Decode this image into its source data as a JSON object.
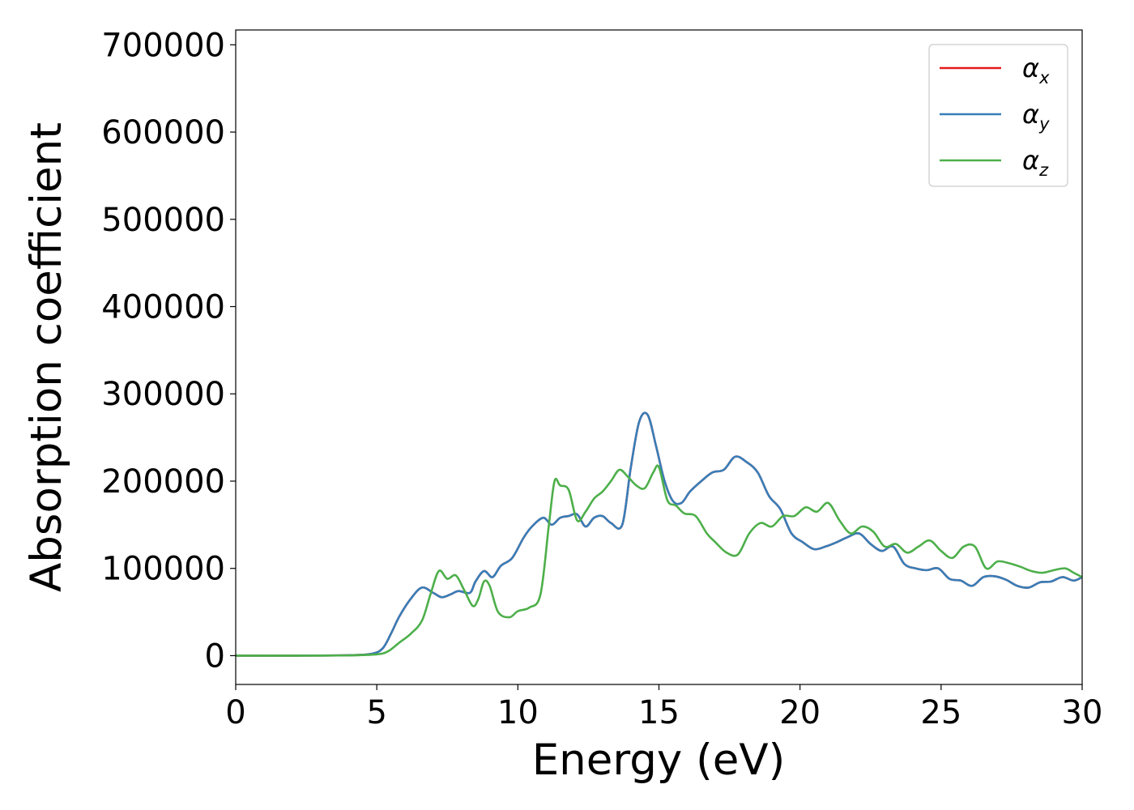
{
  "chart_data": {
    "type": "line",
    "title": "",
    "xlabel": "Energy (eV)",
    "ylabel": "Absorption coefficient",
    "xlim": [
      0,
      30
    ],
    "ylim": [
      -33000,
      717000
    ],
    "xticks": [
      0,
      5,
      10,
      15,
      20,
      25,
      30
    ],
    "xtick_labels": [
      "0",
      "5",
      "10",
      "15",
      "20",
      "25",
      "30"
    ],
    "yticks": [
      0,
      100000,
      200000,
      300000,
      400000,
      500000,
      600000,
      700000
    ],
    "ytick_labels": [
      "0",
      "100000",
      "200000",
      "300000",
      "400000",
      "500000",
      "600000",
      "700000"
    ],
    "grid": false,
    "legend_placement": "top-right",
    "series": [
      {
        "name": "α",
        "subscript": "x",
        "color": "#e41a1c",
        "x": [
          0,
          2,
          4,
          4.8,
          5.2,
          5.5,
          5.8,
          6.2,
          6.6,
          7.0,
          7.3,
          7.6,
          7.9,
          8.3,
          8.5,
          8.8,
          9.1,
          9.4,
          9.8,
          10.2,
          10.5,
          10.9,
          11.2,
          11.5,
          11.8,
          12.1,
          12.4,
          12.7,
          13.0,
          13.3,
          13.7,
          14.0,
          14.3,
          14.6,
          14.9,
          15.2,
          15.5,
          15.8,
          16.1,
          16.5,
          16.9,
          17.3,
          17.7,
          18.1,
          18.5,
          18.9,
          19.3,
          19.7,
          20.1,
          20.5,
          20.9,
          21.3,
          21.7,
          22.1,
          22.5,
          22.9,
          23.3,
          23.7,
          24.1,
          24.5,
          24.9,
          25.3,
          25.7,
          26.1,
          26.5,
          26.9,
          27.3,
          27.7,
          28.1,
          28.5,
          28.9,
          29.3,
          29.7,
          30
        ],
        "y": [
          0,
          0,
          500,
          2000,
          8000,
          25000,
          45000,
          65000,
          78000,
          72000,
          67000,
          70000,
          74000,
          72000,
          85000,
          97000,
          90000,
          103000,
          112000,
          135000,
          148000,
          158000,
          150000,
          158000,
          160000,
          162000,
          148000,
          158000,
          160000,
          152000,
          150000,
          215000,
          268000,
          276000,
          240000,
          200000,
          177000,
          175000,
          188000,
          200000,
          210000,
          213000,
          228000,
          222000,
          210000,
          183000,
          168000,
          140000,
          130000,
          122000,
          125000,
          130000,
          136000,
          140000,
          128000,
          120000,
          125000,
          105000,
          100000,
          98000,
          100000,
          88000,
          86000,
          80000,
          90000,
          91000,
          87000,
          80000,
          78000,
          84000,
          85000,
          90000,
          86000,
          90000
        ]
      },
      {
        "name": "α",
        "subscript": "y",
        "color": "#377eb8",
        "x": [
          0,
          2,
          4,
          4.8,
          5.2,
          5.5,
          5.8,
          6.2,
          6.6,
          7.0,
          7.3,
          7.6,
          7.9,
          8.3,
          8.5,
          8.8,
          9.1,
          9.4,
          9.8,
          10.2,
          10.5,
          10.9,
          11.2,
          11.5,
          11.8,
          12.1,
          12.4,
          12.7,
          13.0,
          13.3,
          13.7,
          14.0,
          14.3,
          14.6,
          14.9,
          15.2,
          15.5,
          15.8,
          16.1,
          16.5,
          16.9,
          17.3,
          17.7,
          18.1,
          18.5,
          18.9,
          19.3,
          19.7,
          20.1,
          20.5,
          20.9,
          21.3,
          21.7,
          22.1,
          22.5,
          22.9,
          23.3,
          23.7,
          24.1,
          24.5,
          24.9,
          25.3,
          25.7,
          26.1,
          26.5,
          26.9,
          27.3,
          27.7,
          28.1,
          28.5,
          28.9,
          29.3,
          29.7,
          30
        ],
        "y": [
          0,
          0,
          500,
          2000,
          8000,
          25000,
          45000,
          65000,
          78000,
          72000,
          67000,
          70000,
          74000,
          72000,
          85000,
          97000,
          90000,
          103000,
          112000,
          135000,
          148000,
          158000,
          150000,
          158000,
          160000,
          162000,
          148000,
          158000,
          160000,
          152000,
          150000,
          215000,
          268000,
          276000,
          240000,
          200000,
          177000,
          175000,
          188000,
          200000,
          210000,
          213000,
          228000,
          222000,
          210000,
          183000,
          168000,
          140000,
          130000,
          122000,
          125000,
          130000,
          136000,
          140000,
          128000,
          120000,
          125000,
          105000,
          100000,
          98000,
          100000,
          88000,
          86000,
          80000,
          90000,
          91000,
          87000,
          80000,
          78000,
          84000,
          85000,
          90000,
          86000,
          90000
        ]
      },
      {
        "name": "α",
        "subscript": "z",
        "color": "#4daf4a",
        "x": [
          0,
          2,
          4,
          5.0,
          5.4,
          5.8,
          6.2,
          6.6,
          6.9,
          7.2,
          7.5,
          7.8,
          8.1,
          8.4,
          8.6,
          8.8,
          9.0,
          9.3,
          9.7,
          10.0,
          10.4,
          10.8,
          11.1,
          11.3,
          11.5,
          11.8,
          12.1,
          12.4,
          12.7,
          13.0,
          13.3,
          13.6,
          13.9,
          14.2,
          14.5,
          14.8,
          15.0,
          15.3,
          15.6,
          15.9,
          16.3,
          16.7,
          17.0,
          17.4,
          17.8,
          18.2,
          18.6,
          19.0,
          19.4,
          19.8,
          20.2,
          20.6,
          21.0,
          21.4,
          21.8,
          22.2,
          22.6,
          23.0,
          23.4,
          23.8,
          24.2,
          24.6,
          25.0,
          25.4,
          25.8,
          26.2,
          26.6,
          27.0,
          27.4,
          27.8,
          28.2,
          28.6,
          29.0,
          29.4,
          29.7,
          30
        ],
        "y": [
          0,
          0,
          300,
          1500,
          5000,
          15000,
          25000,
          40000,
          70000,
          97000,
          88000,
          92000,
          75000,
          57000,
          65000,
          85000,
          80000,
          50000,
          44000,
          51000,
          55000,
          70000,
          150000,
          200000,
          195000,
          190000,
          155000,
          165000,
          180000,
          188000,
          200000,
          213000,
          205000,
          195000,
          192000,
          210000,
          216000,
          178000,
          172000,
          163000,
          160000,
          140000,
          130000,
          118000,
          116000,
          140000,
          152000,
          148000,
          160000,
          160000,
          170000,
          165000,
          175000,
          155000,
          140000,
          148000,
          142000,
          125000,
          128000,
          118000,
          125000,
          132000,
          120000,
          112000,
          125000,
          125000,
          100000,
          108000,
          106000,
          102000,
          97000,
          95000,
          98000,
          100000,
          95000,
          90000
        ]
      }
    ]
  }
}
